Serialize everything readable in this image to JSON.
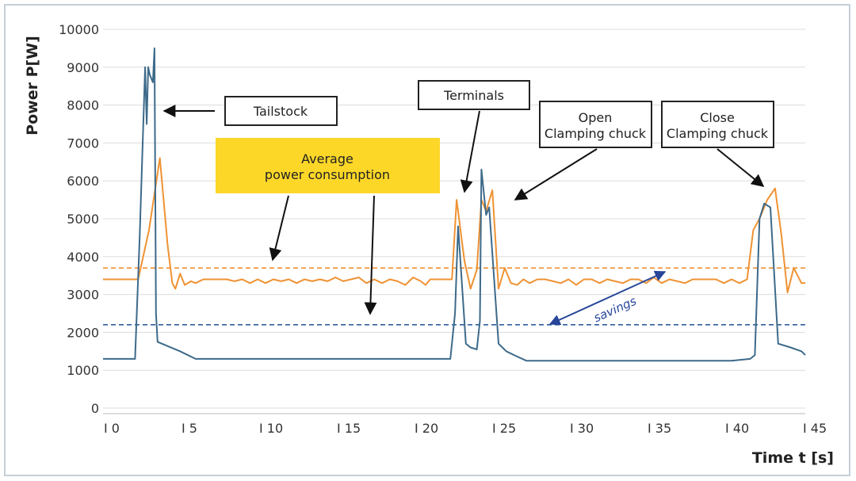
{
  "chart_data": {
    "type": "line",
    "xlabel": "Time t [s]",
    "ylabel": "Power P[W]",
    "xlim": [
      0,
      45
    ],
    "ylim": [
      0,
      10000
    ],
    "x_ticks": [
      {
        "value": 0,
        "label": "I 0"
      },
      {
        "value": 5,
        "label": "I 5"
      },
      {
        "value": 10,
        "label": "I 10"
      },
      {
        "value": 15,
        "label": "I 15"
      },
      {
        "value": 20,
        "label": "I 20"
      },
      {
        "value": 25,
        "label": "I 25"
      },
      {
        "value": 30,
        "label": "I 30"
      },
      {
        "value": 35,
        "label": "I 35"
      },
      {
        "value": 40,
        "label": "I 40"
      },
      {
        "value": 45,
        "label": "I 45"
      }
    ],
    "y_ticks": [
      0,
      1000,
      2000,
      3000,
      4000,
      5000,
      6000,
      7000,
      8000,
      9000,
      10000
    ],
    "grid": "horizontal",
    "colors": {
      "orange": "#ef9233",
      "blue": "#3d6a8a",
      "avg_blue": "#2f5f9e",
      "arrow_blue": "#27469a",
      "highlight": "#fcd728",
      "grid": "#dcdcdc"
    },
    "series": [
      {
        "color": "orange",
        "x": [
          -0.5,
          1.8,
          2.5,
          3.2,
          3.7,
          4.0,
          4.2,
          4.5,
          4.8,
          5.2,
          5.5,
          6.0,
          6.5,
          7.0,
          7.5,
          8.0,
          8.5,
          9.0,
          9.5,
          10.0,
          10.5,
          11.0,
          11.5,
          12.0,
          12.5,
          13.0,
          13.5,
          14.0,
          14.5,
          15.0,
          15.5,
          16.0,
          16.5,
          17.0,
          17.5,
          18.0,
          18.5,
          19.0,
          19.5,
          20.0,
          20.3,
          20.6,
          21.0,
          21.5,
          22.0,
          22.3,
          22.8,
          23.2,
          23.6,
          23.9,
          24.2,
          24.6,
          25.0,
          25.4,
          25.8,
          26.2,
          26.6,
          27.0,
          27.5,
          28.0,
          28.5,
          29.0,
          29.5,
          30.0,
          30.5,
          31.0,
          31.5,
          32.0,
          32.5,
          33.0,
          33.5,
          34.0,
          34.5,
          35.0,
          35.5,
          36.0,
          36.5,
          37.0,
          37.5,
          38.0,
          38.5,
          39.0,
          39.5,
          40.0,
          40.5,
          41.0,
          41.4,
          41.8,
          42.3,
          42.8,
          43.2,
          43.6,
          44.0,
          44.5,
          45.0
        ],
        "y": [
          3400,
          3400,
          4700,
          6600,
          4300,
          3300,
          3150,
          3550,
          3250,
          3350,
          3300,
          3400,
          3400,
          3400,
          3400,
          3350,
          3400,
          3300,
          3400,
          3300,
          3400,
          3350,
          3400,
          3300,
          3400,
          3350,
          3400,
          3350,
          3450,
          3350,
          3400,
          3450,
          3300,
          3400,
          3300,
          3400,
          3350,
          3250,
          3450,
          3350,
          3250,
          3400,
          3400,
          3400,
          3400,
          5500,
          3900,
          3150,
          3650,
          5500,
          5200,
          5750,
          3150,
          3700,
          3300,
          3250,
          3400,
          3300,
          3400,
          3400,
          3350,
          3300,
          3400,
          3250,
          3400,
          3400,
          3300,
          3400,
          3350,
          3300,
          3400,
          3400,
          3300,
          3450,
          3300,
          3400,
          3350,
          3300,
          3400,
          3400,
          3400,
          3400,
          3300,
          3400,
          3300,
          3400,
          4700,
          5000,
          5500,
          5800,
          4600,
          3050,
          3700,
          3300,
          3300
        ]
      },
      {
        "color": "blue",
        "x": [
          -0.5,
          1.6,
          1.9,
          2.25,
          2.35,
          2.45,
          2.55,
          2.75,
          2.85,
          2.95,
          3.05,
          4.5,
          5.5,
          6.0,
          8.0,
          10.0,
          12.0,
          14.0,
          16.0,
          18.0,
          20.0,
          21.0,
          21.4,
          21.9,
          22.2,
          22.4,
          22.9,
          23.2,
          23.6,
          23.8,
          23.9,
          24.2,
          24.4,
          25.0,
          25.5,
          26.0,
          26.8,
          28.0,
          30.0,
          32.0,
          34.0,
          36.0,
          38.0,
          40.0,
          41.2,
          41.5,
          41.8,
          42.1,
          42.5,
          43.0,
          43.8,
          44.5,
          45.0
        ],
        "y": [
          1300,
          1300,
          4500,
          9000,
          7500,
          9000,
          8800,
          8600,
          9500,
          2500,
          1750,
          1500,
          1300,
          1300,
          1300,
          1300,
          1300,
          1300,
          1300,
          1300,
          1300,
          1300,
          1300,
          1300,
          2500,
          4800,
          1700,
          1600,
          1550,
          2300,
          6300,
          5100,
          5300,
          1700,
          1500,
          1400,
          1250,
          1250,
          1250,
          1250,
          1250,
          1250,
          1250,
          1250,
          1300,
          1400,
          5000,
          5400,
          5300,
          1700,
          1600,
          1500,
          1400
        ]
      }
    ],
    "averages": [
      {
        "color": "orange",
        "value": 3700
      },
      {
        "color": "avg_blue",
        "value": 2200
      }
    ],
    "annotations": {
      "tailstock": "Tailstock",
      "terminals": "Terminals",
      "open_line1": "Open",
      "open_line2": "Clamping chuck",
      "close_line1": "Close",
      "close_line2": "Clamping chuck",
      "average_line1": "Average",
      "average_line2": "power consumption",
      "savings": "savings"
    }
  }
}
